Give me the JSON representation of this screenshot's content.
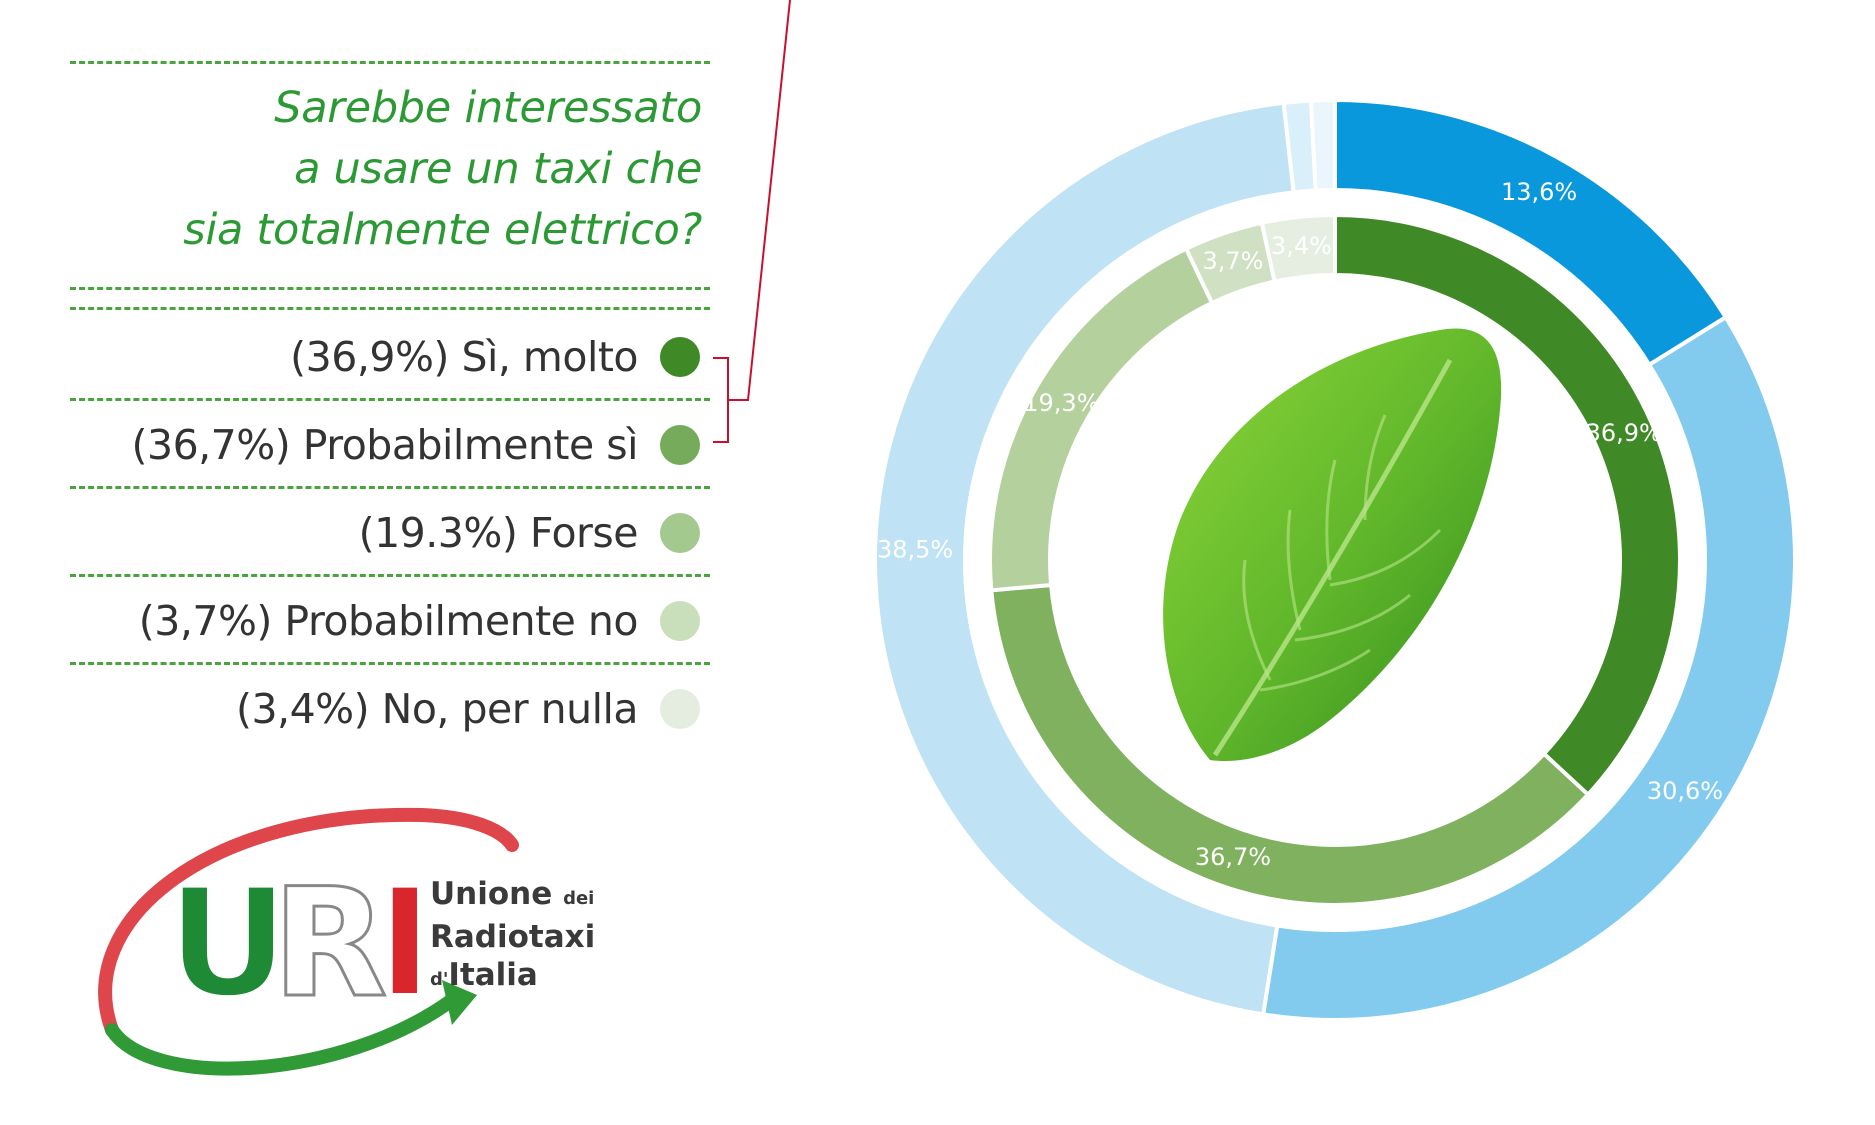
{
  "question": {
    "lines": [
      "Sarebbe interessato",
      "a usare un taxi che",
      "sia totalmente elettrico?"
    ]
  },
  "legend": [
    {
      "label": "(36,9%) Sì, molto",
      "color": "#3f8a26"
    },
    {
      "label": "(36,7%) Probabilmente sì",
      "color": "#76ab5c"
    },
    {
      "label": "(19.3%) Forse",
      "color": "#a4c98f"
    },
    {
      "label": "(3,7%) Probabilmente no",
      "color": "#c9dfbc"
    },
    {
      "label": "(3,4%) No, per nulla",
      "color": "#e4ede0"
    }
  ],
  "chart_data": {
    "type": "pie",
    "style": "nested-donut",
    "inner_ring": {
      "categories": [
        "Sì, molto",
        "Probabilmente sì",
        "Forse",
        "Probabilmente no",
        "No, per nulla"
      ],
      "values": [
        36.9,
        36.7,
        19.3,
        3.7,
        3.4
      ],
      "labels": [
        "36,9%",
        "36,7%",
        "19,3%",
        "3,7%",
        "3,4%"
      ],
      "colors": [
        "#3f8a26",
        "#7fb15f",
        "#b4d09d",
        "#cfe0c3",
        "#e6eee1"
      ]
    },
    "outer_ring": {
      "values": [
        13.6,
        30.6,
        38.5,
        0.8,
        0.7
      ],
      "labels": [
        "13,6%",
        "30,6%",
        "38,5%",
        "",
        ""
      ],
      "colors": [
        "#0998dc",
        "#82cbef",
        "#bfe2f5",
        "#d9effa",
        "#eaf6fc"
      ]
    }
  },
  "logo": {
    "letters": "URI",
    "name_line1": "Unione",
    "name_line1_small": "dei",
    "name_line2": "Radiotaxi",
    "name_line3_small": "d'",
    "name_line3": "Italia"
  }
}
